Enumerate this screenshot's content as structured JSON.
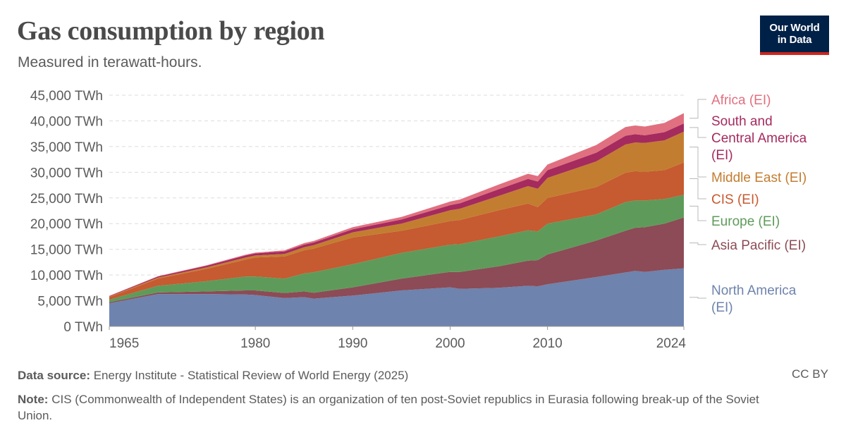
{
  "header": {
    "title": "Gas consumption by region",
    "subtitle": "Measured in terawatt-hours.",
    "logo_line1": "Our World",
    "logo_line2": "in Data"
  },
  "footer": {
    "source_label": "Data source:",
    "source_text": "Energy Institute - Statistical Review of World Energy (2025)",
    "license": "CC BY",
    "note_label": "Note:",
    "note_text": "CIS (Commonwealth of Independent States) is an organization of ten post-Soviet republics in Eurasia following break-up of the Soviet Union."
  },
  "chart_data": {
    "type": "area",
    "stacked": true,
    "title": "Gas consumption by region",
    "subtitle": "Measured in terawatt-hours.",
    "unit": "TWh",
    "ylim": [
      0,
      45000
    ],
    "y_ticks": [
      0,
      5000,
      10000,
      15000,
      20000,
      25000,
      30000,
      35000,
      40000,
      45000
    ],
    "y_tick_labels": [
      "0 TWh",
      "5,000 TWh",
      "10,000 TWh",
      "15,000 TWh",
      "20,000 TWh",
      "25,000 TWh",
      "30,000 TWh",
      "35,000 TWh",
      "40,000 TWh",
      "45,000 TWh"
    ],
    "xlim": [
      1965,
      2024
    ],
    "x_ticks": [
      1965,
      1980,
      1990,
      2000,
      2010,
      2024
    ],
    "grid": "horizontal dashed",
    "legend_position": "right",
    "x": [
      1965,
      1970,
      1975,
      1979,
      1980,
      1983,
      1985,
      1986,
      1990,
      1995,
      2000,
      2001,
      2005,
      2008,
      2009,
      2010,
      2015,
      2018,
      2019,
      2020,
      2022,
      2024
    ],
    "series": [
      {
        "name": "North America (EI)",
        "color": "#6e83ad",
        "values": [
          4500,
          6300,
          6300,
          6200,
          6100,
          5500,
          5700,
          5400,
          6000,
          7000,
          7600,
          7300,
          7500,
          7900,
          7800,
          8200,
          9600,
          10500,
          10800,
          10600,
          11000,
          11300
        ]
      },
      {
        "name": "Asia Pacific (EI)",
        "color": "#8c4b56",
        "values": [
          200,
          300,
          500,
          800,
          900,
          1000,
          1100,
          1150,
          1600,
          2300,
          3000,
          3300,
          4200,
          4900,
          5100,
          5800,
          7100,
          8100,
          8400,
          8700,
          9000,
          9900
        ]
      },
      {
        "name": "Europe (EI)",
        "color": "#5e9b5a",
        "values": [
          500,
          1300,
          2000,
          2700,
          2700,
          2800,
          3500,
          4000,
          4500,
          5000,
          5300,
          5400,
          5800,
          5900,
          5600,
          6000,
          5100,
          5600,
          5300,
          5200,
          4800,
          4400
        ]
      },
      {
        "name": "CIS (EI)",
        "color": "#c65a30",
        "values": [
          500,
          1400,
          2400,
          3300,
          3700,
          4300,
          4500,
          4600,
          5200,
          4300,
          4600,
          4700,
          5100,
          5200,
          4700,
          5000,
          5300,
          5700,
          5700,
          5600,
          5600,
          6300
        ]
      },
      {
        "name": "Middle East (EI)",
        "color": "#c37d30",
        "values": [
          100,
          200,
          300,
          400,
          400,
          500,
          600,
          650,
          1000,
          1400,
          2100,
          2200,
          2800,
          3400,
          3600,
          3900,
          5000,
          5500,
          5600,
          5600,
          5800,
          6000
        ]
      },
      {
        "name": "South and Central America (EI)",
        "color": "#a52a5e",
        "values": [
          100,
          200,
          300,
          400,
          400,
          500,
          500,
          520,
          600,
          800,
          1000,
          1050,
          1300,
          1400,
          1400,
          1500,
          1700,
          1700,
          1600,
          1500,
          1600,
          1600
        ]
      },
      {
        "name": "Africa (EI)",
        "color": "#e0707f",
        "values": [
          50,
          80,
          100,
          150,
          150,
          200,
          300,
          320,
          400,
          500,
          700,
          750,
          900,
          1000,
          1050,
          1100,
          1500,
          1700,
          1700,
          1700,
          1800,
          2000
        ]
      }
    ]
  }
}
